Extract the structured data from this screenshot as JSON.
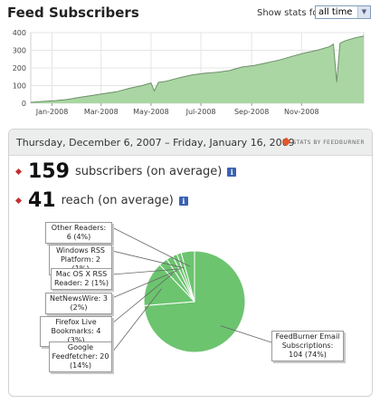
{
  "header": {
    "title": "Feed Subscribers",
    "stats_label": "Show stats for",
    "stats_selected": "all time"
  },
  "colors": {
    "area_fill": "#a9d6a2",
    "area_line": "#6e8f6a",
    "pie_fill": "#6cc46f",
    "pie_edge": "#ffffff",
    "bullet": "#c43030",
    "info": "#3a62b3"
  },
  "summary": {
    "date_range": "Thursday, December 6, 2007 – Friday, January 16, 2009",
    "logo_text": "STATS BY FEEDBURNER",
    "subscribers_value": "159",
    "subscribers_text": "subscribers (on average)",
    "reach_value": "41",
    "reach_text": "reach (on average)",
    "info_icon": "i"
  },
  "chart_data": [
    {
      "type": "area",
      "title": "",
      "ylim": [
        0,
        400
      ],
      "yticks": [
        0,
        100,
        200,
        300,
        400
      ],
      "x_tick_labels": [
        "Jan-2008",
        "Mar-2008",
        "May-2008",
        "Jul-2008",
        "Sep-2008",
        "Nov-2008"
      ],
      "x_range": [
        "2007-12-06",
        "2009-01-16"
      ],
      "grid": true,
      "series": [
        {
          "x": [
            "2007-12-06",
            "2007-12-20",
            "2008-01-05",
            "2008-01-20",
            "2008-02-05",
            "2008-02-20",
            "2008-03-05",
            "2008-03-20",
            "2008-04-05",
            "2008-04-20",
            "2008-05-01",
            "2008-05-05",
            "2008-05-10",
            "2008-05-20",
            "2008-06-05",
            "2008-06-20",
            "2008-07-05",
            "2008-07-20",
            "2008-08-05",
            "2008-08-20",
            "2008-09-05",
            "2008-09-20",
            "2008-10-05",
            "2008-10-20",
            "2008-11-05",
            "2008-11-20",
            "2008-12-05",
            "2008-12-10",
            "2008-12-14",
            "2008-12-18",
            "2008-12-25",
            "2009-01-05",
            "2009-01-16"
          ],
          "values": [
            5,
            10,
            15,
            22,
            35,
            45,
            55,
            65,
            85,
            100,
            115,
            70,
            118,
            125,
            145,
            160,
            170,
            175,
            185,
            205,
            215,
            230,
            245,
            265,
            285,
            300,
            320,
            335,
            120,
            340,
            355,
            370,
            380
          ]
        }
      ]
    },
    {
      "type": "pie",
      "title": "",
      "slices": [
        {
          "label": "FeedBurner Email Subscriptions",
          "value": 104,
          "percent": "74%",
          "callout": "FeedBurner Email Subscriptions: 104 (74%)"
        },
        {
          "label": "Google Feedfetcher",
          "value": 20,
          "percent": "14%",
          "callout": "Google Feedfetcher: 20 (14%)"
        },
        {
          "label": "Firefox Live Bookmarks",
          "value": 4,
          "percent": "3%",
          "callout": "Firefox Live Bookmarks: 4 (3%)"
        },
        {
          "label": "NetNewsWire",
          "value": 3,
          "percent": "2%",
          "callout": "NetNewsWire: 3 (2%)"
        },
        {
          "label": "Mac OS X RSS Reader",
          "value": 2,
          "percent": "1%",
          "callout": "Mac OS X RSS Reader: 2 (1%)"
        },
        {
          "label": "Windows RSS Platform",
          "value": 2,
          "percent": "1%",
          "callout": "Windows RSS Platform: 2 (1%)"
        },
        {
          "label": "Other Readers",
          "value": 6,
          "percent": "4%",
          "callout": "Other Readers: 6 (4%)"
        }
      ]
    }
  ]
}
